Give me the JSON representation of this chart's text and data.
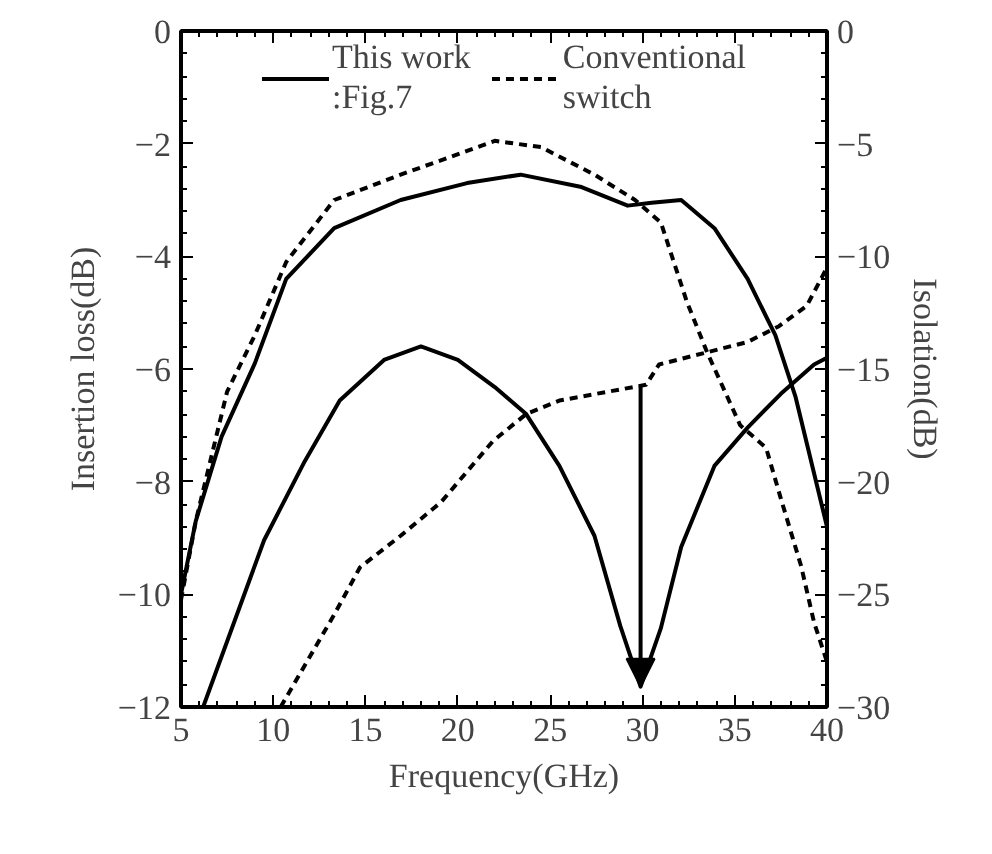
{
  "chart_data": {
    "type": "line",
    "xlabel": "Frequency(GHz)",
    "ylabel": "Insertion loss(dB)",
    "y2label": "Isolation(dB)",
    "xlim": [
      5,
      40
    ],
    "xticks": [
      5,
      10,
      15,
      20,
      25,
      30,
      35,
      40
    ],
    "ylim": [
      -12,
      0
    ],
    "yticks": [
      -12,
      -10,
      -8,
      -6,
      -4,
      -2,
      0
    ],
    "y2lim": [
      -30,
      0
    ],
    "y2ticks": [
      -30,
      -25,
      -20,
      -15,
      -10,
      -5,
      0
    ],
    "legend": "top",
    "grid": false,
    "series": [
      {
        "name": "This work\n:Fig.7",
        "color": "#000000",
        "line_style": "solid",
        "x": [
          5,
          5.8,
          7.2,
          9.0,
          10.7,
          13.3,
          16.9,
          20.5,
          23.4,
          26.7,
          29.2,
          30.5,
          32.1,
          33.9,
          35.7,
          37.2,
          38.3,
          40
        ],
        "values": [
          -10.0,
          -8.7,
          -7.2,
          -5.9,
          -4.4,
          -3.5,
          -3.0,
          -2.7,
          -2.55,
          -2.77,
          -3.1,
          -3.05,
          -3.0,
          -3.5,
          -4.4,
          -5.4,
          -6.5,
          -8.8
        ]
      },
      {
        "name": "Conventional\nswitch",
        "color": "#000000",
        "line_style": "dashed",
        "x": [
          5,
          5.8,
          7.5,
          9.0,
          10.7,
          13.3,
          16.9,
          20.5,
          22.0,
          24.5,
          27.4,
          29.6,
          31.0,
          32.4,
          33.5,
          35.3,
          36.7,
          37.5,
          38.6,
          39.3,
          40
        ],
        "values": [
          -10.1,
          -8.7,
          -6.4,
          -5.4,
          -4.1,
          -3.0,
          -2.55,
          -2.13,
          -1.95,
          -2.06,
          -2.55,
          -3.0,
          -3.4,
          -4.8,
          -5.7,
          -7.0,
          -7.4,
          -8.3,
          -9.5,
          -10.5,
          -11.2
        ]
      },
      {
        "color": "#000000",
        "line_style": "solid",
        "axis": "y2",
        "x": [
          6.2,
          9.5,
          11.7,
          13.6,
          16.0,
          18.0,
          20.0,
          22.0,
          23.7,
          25.5,
          27.4,
          28.8,
          29.9,
          31.0,
          32.1,
          33.9,
          35.7,
          37.5,
          39.3,
          40
        ],
        "values": [
          -30,
          -22.6,
          -19.1,
          -16.4,
          -14.6,
          -14.0,
          -14.6,
          -15.8,
          -17.0,
          -19.3,
          -22.4,
          -26.4,
          -29.1,
          -26.5,
          -22.9,
          -19.3,
          -17.6,
          -16.1,
          -14.8,
          -14.5
        ]
      },
      {
        "color": "#000000",
        "line_style": "dashed",
        "axis": "y2",
        "x": [
          10.4,
          13.3,
          14.7,
          16.9,
          19.1,
          21.9,
          23.7,
          25.5,
          30.2,
          30.9,
          35.7,
          37.4,
          38.9,
          40
        ],
        "values": [
          -30,
          -25.9,
          -23.8,
          -22.4,
          -20.9,
          -18.2,
          -17.0,
          -16.4,
          -15.7,
          -14.8,
          -13.8,
          -13.1,
          -12.2,
          -10.5
        ]
      }
    ]
  }
}
